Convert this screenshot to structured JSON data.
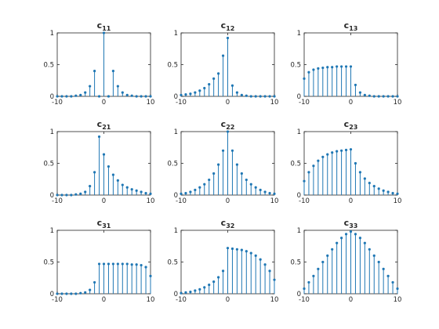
{
  "style": {
    "stem_color": "#1f77b4",
    "axis_color": "#262626"
  },
  "chart_data": [
    {
      "type": "stem",
      "title_base": "c",
      "title_sub": "11",
      "xlim": [
        -10,
        10
      ],
      "ylim": [
        0,
        1
      ],
      "xticks": [
        "-10",
        "0",
        "10"
      ],
      "yticks": [
        "0",
        "0.5",
        "1"
      ],
      "x": [
        -10,
        -9,
        -8,
        -7,
        -6,
        -5,
        -4,
        -3,
        -2,
        -1,
        0,
        1,
        2,
        3,
        4,
        5,
        6,
        7,
        8,
        9,
        10
      ],
      "y": [
        0.0,
        0.0,
        0.0,
        0.0,
        0.01,
        0.02,
        0.06,
        0.16,
        0.4,
        0.0,
        1.0,
        0.0,
        0.4,
        0.16,
        0.06,
        0.02,
        0.01,
        0.0,
        0.0,
        0.0,
        0.0
      ]
    },
    {
      "type": "stem",
      "title_base": "c",
      "title_sub": "12",
      "xlim": [
        -10,
        10
      ],
      "ylim": [
        0,
        1
      ],
      "xticks": [
        "-10",
        "0",
        "10"
      ],
      "yticks": [
        "0",
        "0.5",
        "1"
      ],
      "x": [
        -10,
        -9,
        -8,
        -7,
        -6,
        -5,
        -4,
        -3,
        -2,
        -1,
        0,
        1,
        2,
        3,
        4,
        5,
        6,
        7,
        8,
        9,
        10
      ],
      "y": [
        0.02,
        0.03,
        0.04,
        0.06,
        0.09,
        0.13,
        0.19,
        0.28,
        0.36,
        0.64,
        0.92,
        0.17,
        0.06,
        0.02,
        0.01,
        0.0,
        0.0,
        0.0,
        0.0,
        0.0,
        0.0
      ]
    },
    {
      "type": "stem",
      "title_base": "c",
      "title_sub": "13",
      "xlim": [
        -10,
        10
      ],
      "ylim": [
        0,
        1
      ],
      "xticks": [
        "-10",
        "0",
        "10"
      ],
      "yticks": [
        "0",
        "0.5",
        "1"
      ],
      "x": [
        -10,
        -9,
        -8,
        -7,
        -6,
        -5,
        -4,
        -3,
        -2,
        -1,
        0,
        1,
        2,
        3,
        4,
        5,
        6,
        7,
        8,
        9,
        10
      ],
      "y": [
        0.28,
        0.38,
        0.42,
        0.44,
        0.45,
        0.46,
        0.46,
        0.47,
        0.47,
        0.47,
        0.47,
        0.18,
        0.06,
        0.02,
        0.01,
        0.0,
        0.0,
        0.0,
        0.0,
        0.0,
        0.0
      ]
    },
    {
      "type": "stem",
      "title_base": "c",
      "title_sub": "21",
      "xlim": [
        -10,
        10
      ],
      "ylim": [
        0,
        1
      ],
      "xticks": [
        "-10",
        "0",
        "10"
      ],
      "yticks": [
        "0",
        "0.5",
        "1"
      ],
      "x": [
        -10,
        -9,
        -8,
        -7,
        -6,
        -5,
        -4,
        -3,
        -2,
        -1,
        0,
        1,
        2,
        3,
        4,
        5,
        6,
        7,
        8,
        9,
        10
      ],
      "y": [
        0.0,
        0.0,
        0.0,
        0.0,
        0.01,
        0.02,
        0.05,
        0.14,
        0.36,
        0.92,
        0.64,
        0.45,
        0.32,
        0.23,
        0.16,
        0.12,
        0.09,
        0.07,
        0.05,
        0.03,
        0.02
      ]
    },
    {
      "type": "stem",
      "title_base": "c",
      "title_sub": "22",
      "xlim": [
        -10,
        10
      ],
      "ylim": [
        0,
        1
      ],
      "xticks": [
        "-10",
        "0",
        "10"
      ],
      "yticks": [
        "0",
        "0.5",
        "1"
      ],
      "x": [
        -10,
        -9,
        -8,
        -7,
        -6,
        -5,
        -4,
        -3,
        -2,
        -1,
        0,
        1,
        2,
        3,
        4,
        5,
        6,
        7,
        8,
        9,
        10
      ],
      "y": [
        0.02,
        0.03,
        0.05,
        0.08,
        0.12,
        0.17,
        0.24,
        0.34,
        0.48,
        0.7,
        1.0,
        0.7,
        0.48,
        0.34,
        0.24,
        0.17,
        0.12,
        0.08,
        0.05,
        0.03,
        0.02
      ]
    },
    {
      "type": "stem",
      "title_base": "c",
      "title_sub": "23",
      "xlim": [
        -10,
        10
      ],
      "ylim": [
        0,
        1
      ],
      "xticks": [
        "-10",
        "0",
        "10"
      ],
      "yticks": [
        "0",
        "0.5",
        "1"
      ],
      "x": [
        -10,
        -9,
        -8,
        -7,
        -6,
        -5,
        -4,
        -3,
        -2,
        -1,
        0,
        1,
        2,
        3,
        4,
        5,
        6,
        7,
        8,
        9,
        10
      ],
      "y": [
        0.22,
        0.36,
        0.46,
        0.54,
        0.6,
        0.64,
        0.67,
        0.69,
        0.7,
        0.71,
        0.72,
        0.5,
        0.36,
        0.26,
        0.19,
        0.14,
        0.1,
        0.07,
        0.05,
        0.03,
        0.02
      ]
    },
    {
      "type": "stem",
      "title_base": "c",
      "title_sub": "31",
      "xlim": [
        -10,
        10
      ],
      "ylim": [
        0,
        1
      ],
      "xticks": [
        "-10",
        "0",
        "10"
      ],
      "yticks": [
        "0",
        "0.5",
        "1"
      ],
      "x": [
        -10,
        -9,
        -8,
        -7,
        -6,
        -5,
        -4,
        -3,
        -2,
        -1,
        0,
        1,
        2,
        3,
        4,
        5,
        6,
        7,
        8,
        9,
        10
      ],
      "y": [
        0.0,
        0.0,
        0.0,
        0.0,
        0.0,
        0.01,
        0.02,
        0.06,
        0.18,
        0.47,
        0.47,
        0.47,
        0.47,
        0.47,
        0.47,
        0.47,
        0.46,
        0.46,
        0.45,
        0.42,
        0.28
      ]
    },
    {
      "type": "stem",
      "title_base": "c",
      "title_sub": "32",
      "xlim": [
        -10,
        10
      ],
      "ylim": [
        0,
        1
      ],
      "xticks": [
        "-10",
        "0",
        "10"
      ],
      "yticks": [
        "0",
        "0.5",
        "1"
      ],
      "x": [
        -10,
        -9,
        -8,
        -7,
        -6,
        -5,
        -4,
        -3,
        -2,
        -1,
        0,
        1,
        2,
        3,
        4,
        5,
        6,
        7,
        8,
        9,
        10
      ],
      "y": [
        0.01,
        0.02,
        0.03,
        0.05,
        0.07,
        0.1,
        0.14,
        0.19,
        0.26,
        0.36,
        0.72,
        0.71,
        0.7,
        0.69,
        0.67,
        0.64,
        0.6,
        0.54,
        0.46,
        0.36,
        0.22
      ]
    },
    {
      "type": "stem",
      "title_base": "c",
      "title_sub": "33",
      "xlim": [
        -10,
        10
      ],
      "ylim": [
        0,
        1
      ],
      "xticks": [
        "-10",
        "0",
        "10"
      ],
      "yticks": [
        "0",
        "0.5",
        "1"
      ],
      "x": [
        -10,
        -9,
        -8,
        -7,
        -6,
        -5,
        -4,
        -3,
        -2,
        -1,
        0,
        1,
        2,
        3,
        4,
        5,
        6,
        7,
        8,
        9,
        10
      ],
      "y": [
        0.08,
        0.18,
        0.28,
        0.39,
        0.5,
        0.6,
        0.7,
        0.8,
        0.88,
        0.94,
        0.98,
        0.94,
        0.88,
        0.8,
        0.7,
        0.6,
        0.5,
        0.39,
        0.28,
        0.18,
        0.08
      ]
    }
  ]
}
